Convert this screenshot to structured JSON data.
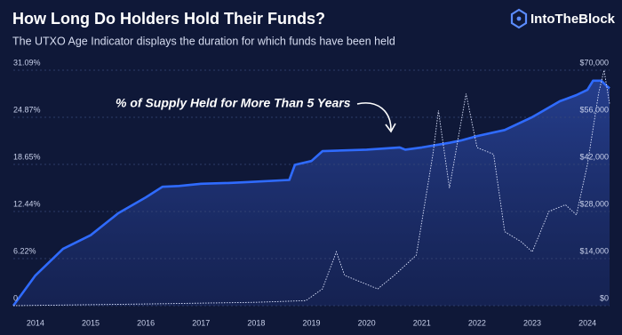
{
  "brand": "IntoTheBlock",
  "chart_data": {
    "type": "line",
    "title": "How Long Do Holders Hold Their Funds?",
    "subtitle": "The UTXO Age Indicator displays the duration for which funds have been held",
    "annotation": "% of Supply Held for More Than 5 Years",
    "xlim": [
      2013.6,
      2024.4
    ],
    "xticks": [
      2014,
      2015,
      2016,
      2017,
      2018,
      2019,
      2020,
      2021,
      2022,
      2023,
      2024
    ],
    "ylim": [
      0,
      31.09
    ],
    "yticks": [
      0,
      {
        "value": 6.22,
        "label": "6.22%"
      },
      {
        "value": 12.44,
        "label": "12.44%"
      },
      {
        "value": 18.65,
        "label": "18.65%"
      },
      {
        "value": 24.87,
        "label": "24.87%"
      },
      {
        "value": 31.09,
        "label": "31.09%"
      }
    ],
    "y2lim": [
      0,
      70000
    ],
    "y2ticks": [
      {
        "value": 0,
        "label": "$0"
      },
      {
        "value": 14000,
        "label": "$14,000"
      },
      {
        "value": 28000,
        "label": "$28,000"
      },
      {
        "value": 42000,
        "label": "$42,000"
      },
      {
        "value": 56000,
        "label": "$56,000"
      },
      {
        "value": 70000,
        "label": "$70,000"
      }
    ],
    "grid": true,
    "series": [
      {
        "name": "% of Supply Held for More Than 5 Years",
        "color": "#2f6bff",
        "x": [
          2013.6,
          2013.8,
          2014.0,
          2014.5,
          2015.0,
          2015.5,
          2016.0,
          2016.3,
          2016.6,
          2017.0,
          2017.5,
          2017.8,
          2018.6,
          2018.7,
          2019.0,
          2019.2,
          2020.0,
          2020.6,
          2020.7,
          2021.0,
          2021.5,
          2021.7,
          2022.0,
          2022.5,
          2023.0,
          2023.5,
          2023.8,
          2024.0,
          2024.1,
          2024.25,
          2024.35,
          2024.4
        ],
        "values": [
          0,
          2,
          4.0,
          7.5,
          9.3,
          12.2,
          14.3,
          15.7,
          15.8,
          16.1,
          16.2,
          16.3,
          16.6,
          18.6,
          19.1,
          20.4,
          20.6,
          20.9,
          20.6,
          20.9,
          21.5,
          21.8,
          22.4,
          23.2,
          24.9,
          27.0,
          27.8,
          28.5,
          29.7,
          29.7,
          29.0,
          28.7
        ]
      },
      {
        "color": "#dfe6ff",
        "axis": "y2",
        "x": [
          2013.6,
          2016.0,
          2018.0,
          2018.9,
          2019.2,
          2019.45,
          2019.6,
          2019.9,
          2020.2,
          2020.5,
          2020.9,
          2021.2,
          2021.3,
          2021.5,
          2021.8,
          2022.0,
          2022.3,
          2022.5,
          2022.8,
          2023.0,
          2023.3,
          2023.6,
          2023.8,
          2024.0,
          2024.2,
          2024.3,
          2024.4
        ],
        "values": [
          0,
          500,
          1000,
          1500,
          5000,
          16000,
          9000,
          7000,
          5000,
          9000,
          15000,
          45000,
          58000,
          35000,
          63000,
          47000,
          45000,
          22000,
          19000,
          16000,
          28000,
          30000,
          27000,
          42000,
          63000,
          70000,
          60000
        ]
      }
    ]
  }
}
